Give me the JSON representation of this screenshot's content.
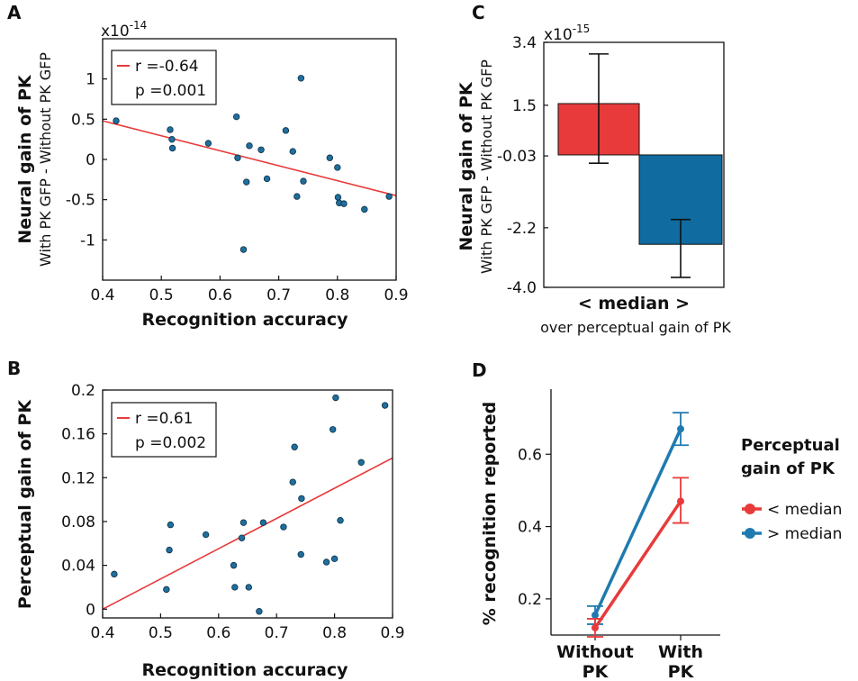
{
  "chart_data": [
    {
      "panel": "A",
      "type": "scatter",
      "xlabel": "Recognition accuracy",
      "ylabel": "Neural gain of PK",
      "ylabel_sub": "With PK GFP - Without PK GFP",
      "y_exponent_base": "x10",
      "y_exponent": "-14",
      "xlim": [
        0.4,
        0.9
      ],
      "ylim": [
        -1.5,
        1.5
      ],
      "xticks": [
        0.4,
        0.5,
        0.6,
        0.7,
        0.8,
        0.9
      ],
      "xtick_labels": [
        "0.4",
        "0.5",
        "0.6",
        "0.7",
        "0.8",
        "0.9"
      ],
      "yticks": [
        -1,
        -0.5,
        0,
        0.5,
        1
      ],
      "ytick_labels": [
        "-1",
        "-0.5",
        "0",
        "0.5",
        "1"
      ],
      "legend": {
        "line1": "r =-0.64",
        "line2": "p =0.001",
        "placement": "top-left"
      },
      "fit": {
        "x": [
          0.4,
          0.9
        ],
        "y": [
          0.48,
          -0.45
        ]
      },
      "points": {
        "x": [
          0.423,
          0.515,
          0.518,
          0.519,
          0.58,
          0.628,
          0.63,
          0.64,
          0.645,
          0.65,
          0.67,
          0.68,
          0.712,
          0.724,
          0.731,
          0.738,
          0.742,
          0.787,
          0.8,
          0.801,
          0.803,
          0.811,
          0.846,
          0.888
        ],
        "y": [
          0.48,
          0.37,
          0.25,
          0.14,
          0.2,
          0.53,
          0.02,
          -1.12,
          -0.28,
          0.17,
          0.12,
          -0.24,
          0.36,
          0.1,
          -0.46,
          1.01,
          -0.27,
          0.02,
          -0.1,
          -0.47,
          -0.54,
          -0.55,
          -0.62,
          -0.46
        ]
      }
    },
    {
      "panel": "B",
      "type": "scatter",
      "xlabel": "Recognition accuracy",
      "ylabel": "Perceptual gain of PK",
      "xlim": [
        0.4,
        0.9
      ],
      "ylim": [
        -0.008,
        0.2
      ],
      "xticks": [
        0.4,
        0.5,
        0.6,
        0.7,
        0.8,
        0.9
      ],
      "xtick_labels": [
        "0.4",
        "0.5",
        "0.6",
        "0.7",
        "0.8",
        "0.9"
      ],
      "yticks": [
        0,
        0.04,
        0.08,
        0.12,
        0.16,
        0.2
      ],
      "ytick_labels": [
        "0",
        "0.04",
        "0.08",
        "0.12",
        "0.16",
        "0.2"
      ],
      "legend": {
        "line1": "r =0.61",
        "line2": "p =0.002",
        "placement": "top-left"
      },
      "fit": {
        "x": [
          0.4,
          0.9
        ],
        "y": [
          0.0,
          0.138
        ]
      },
      "points": {
        "x": [
          0.42,
          0.51,
          0.515,
          0.517,
          0.578,
          0.626,
          0.628,
          0.64,
          0.643,
          0.652,
          0.67,
          0.677,
          0.712,
          0.728,
          0.731,
          0.742,
          0.743,
          0.786,
          0.797,
          0.8,
          0.802,
          0.81,
          0.846,
          0.887
        ],
        "y": [
          0.032,
          0.018,
          0.054,
          0.077,
          0.068,
          0.04,
          0.02,
          0.065,
          0.079,
          0.02,
          -0.002,
          0.079,
          0.075,
          0.116,
          0.148,
          0.05,
          0.101,
          0.043,
          0.164,
          0.046,
          0.193,
          0.081,
          0.134,
          0.186
        ]
      }
    },
    {
      "panel": "C",
      "type": "bar",
      "xlabel": "< median >",
      "xlabel_sub": "over perceptual gain of PK",
      "ylabel": "Neural gain of PK",
      "ylabel_sub": "With PK GFP - Without PK GFP",
      "y_exponent_base": "x10",
      "y_exponent": "-15",
      "ylim": [
        -4.0,
        3.4
      ],
      "yticks": [
        3.4,
        1.5,
        -0.03,
        -2.2,
        -4.0
      ],
      "ytick_labels": [
        "3.4",
        "1.5",
        "-0.03",
        "-2.2",
        "-4.0"
      ],
      "bars": [
        {
          "value": 1.55,
          "err_low": -0.25,
          "err_high": 3.05,
          "color": "#e83a3a"
        },
        {
          "value": -2.7,
          "err_low": -3.7,
          "err_high": -1.95,
          "color": "#0f6ba0"
        }
      ]
    },
    {
      "panel": "D",
      "type": "line",
      "ylabel": "% recognition reported",
      "categories": [
        "Without PK",
        "With PK"
      ],
      "category_lines": [
        [
          "Without",
          "PK"
        ],
        [
          "With",
          "PK"
        ]
      ],
      "ylim": [
        0.1,
        0.78
      ],
      "yticks": [
        0.2,
        0.4,
        0.6
      ],
      "ytick_labels": [
        "0.2",
        "0.4",
        "0.6"
      ],
      "legend_title_lines": [
        "Perceptual",
        "gain of PK"
      ],
      "series": [
        {
          "name": "< median",
          "color": "#e83a3a",
          "values": [
            0.12,
            0.47
          ],
          "err_low": [
            0.095,
            0.41
          ],
          "err_high": [
            0.145,
            0.535
          ]
        },
        {
          "name": "> median",
          "color": "#1f7ab0",
          "values": [
            0.155,
            0.67
          ],
          "err_low": [
            0.13,
            0.625
          ],
          "err_high": [
            0.18,
            0.715
          ]
        }
      ]
    }
  ],
  "colors": {
    "red": "#e83a3a",
    "blue": "#0f6ba0",
    "point_fill": "#1f6f9e"
  }
}
